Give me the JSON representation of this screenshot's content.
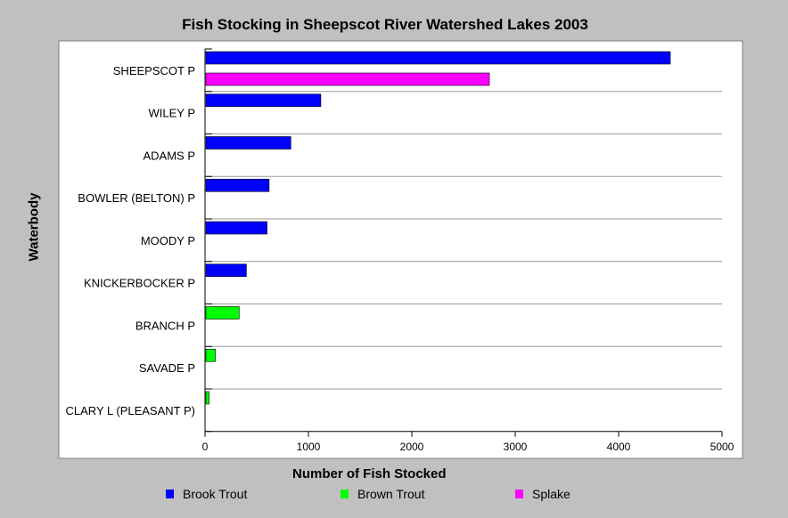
{
  "chart_data": {
    "type": "bar",
    "orientation": "horizontal",
    "title": "Fish Stocking in Sheepscot River Watershed Lakes 2003",
    "xlabel": "Number of Fish Stocked",
    "ylabel": "Waterbody",
    "xlim": [
      0,
      5000
    ],
    "xticks": [
      "0",
      "1000",
      "2000",
      "3000",
      "4000",
      "5000"
    ],
    "grid": "horizontal",
    "legend_position": "bottom",
    "categories": [
      "SHEEPSCOT P",
      "WILEY P",
      "ADAMS P",
      "BOWLER (BELTON) P",
      "MOODY P",
      "KNICKERBOCKER P",
      "BRANCH P",
      "SAVADE P",
      "CLARY L (PLEASANT P)"
    ],
    "series": [
      {
        "name": "Brook Trout",
        "color": "#0000ff",
        "values": [
          4500,
          1120,
          830,
          620,
          600,
          400,
          null,
          null,
          null
        ]
      },
      {
        "name": "Brown Trout",
        "color": "#00ff00",
        "values": [
          null,
          null,
          null,
          null,
          null,
          null,
          330,
          100,
          40
        ]
      },
      {
        "name": "Splake",
        "color": "#ff00ff",
        "values": [
          2750,
          null,
          null,
          null,
          null,
          null,
          null,
          null,
          null
        ]
      }
    ]
  }
}
